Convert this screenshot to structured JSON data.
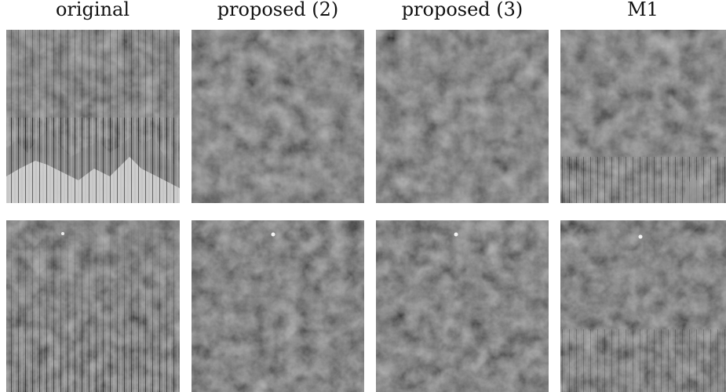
{
  "figure": {
    "columns": [
      "original",
      "proposed (2)",
      "proposed (3)",
      "M1"
    ]
  }
}
